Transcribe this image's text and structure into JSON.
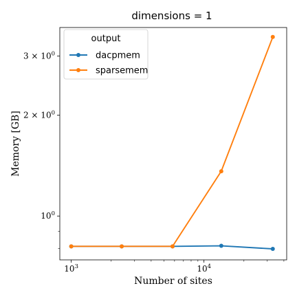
{
  "chart_data": {
    "type": "line",
    "title": "dimensions = 1",
    "xlabel": "Number of sites",
    "ylabel": "Memory [GB]",
    "xscale": "log",
    "yscale": "log",
    "xlim": [
      820,
      42000
    ],
    "ylim": [
      0.74,
      3.65
    ],
    "x_major_ticks": [
      {
        "value": 1000,
        "label": "10",
        "exp": "3"
      },
      {
        "value": 10000,
        "label": "10",
        "exp": "4"
      }
    ],
    "y_major_ticks": [
      {
        "value": 1,
        "label": "10",
        "exp": "0"
      },
      {
        "value": 2,
        "label": "2 × 10",
        "exp": "0"
      },
      {
        "value": 3,
        "label": "3 × 10",
        "exp": "0"
      }
    ],
    "legend": {
      "title": "output",
      "position": "top-left"
    },
    "grid": false,
    "series": [
      {
        "name": "dacpmem",
        "color": "#1f77b4",
        "x": [
          1000,
          2400,
          5800,
          13500,
          33000
        ],
        "y": [
          0.812,
          0.812,
          0.812,
          0.815,
          0.798
        ]
      },
      {
        "name": "sparsemem",
        "color": "#ff7f0e",
        "x": [
          1000,
          2400,
          5800,
          13500,
          33000
        ],
        "y": [
          0.812,
          0.812,
          0.812,
          1.36,
          3.42
        ]
      }
    ]
  }
}
